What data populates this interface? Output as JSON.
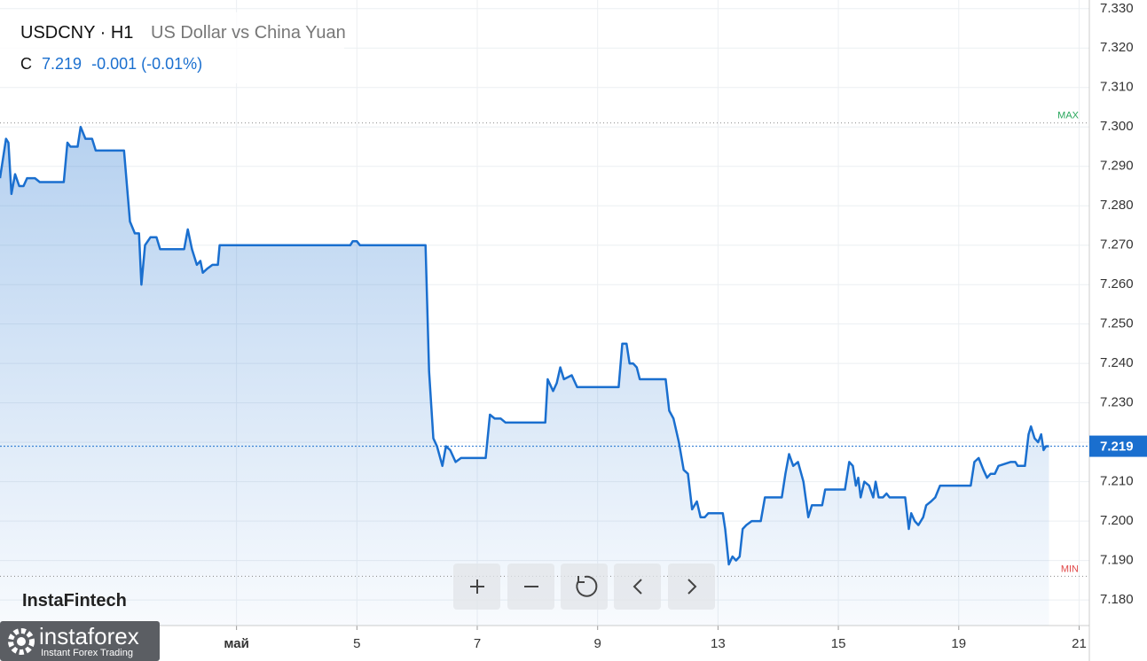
{
  "header": {
    "symbol": "USDCNY · H1",
    "description": "US Dollar vs China Yuan",
    "close_label": "C",
    "close": "7.219",
    "change": "-0.001 (-0.01%)"
  },
  "branding": {
    "logo": "InstaFintech",
    "footer_logo": "instaforex",
    "footer_tagline": "Instant Forex Trading"
  },
  "chart_data": {
    "type": "line",
    "area": true,
    "color": "#1a6fcf",
    "x": [
      -3.93,
      -3.83,
      -3.79,
      -3.74,
      -3.68,
      -3.61,
      -3.54,
      -3.48,
      -3.35,
      -3.27,
      -2.87,
      -2.81,
      -2.76,
      -2.64,
      -2.59,
      -2.51,
      -2.4,
      -2.34,
      -1.87,
      -1.77,
      -1.69,
      -1.62,
      -1.58,
      -1.52,
      -1.43,
      -1.33,
      -1.27,
      -0.87,
      -0.81,
      -0.74,
      -0.66,
      -0.6,
      -0.56,
      -0.49,
      -0.4,
      -0.31,
      -0.28,
      1.89,
      1.93,
      2.0,
      2.05,
      3.14,
      3.2,
      3.27,
      3.33,
      3.42,
      3.48,
      3.55,
      3.64,
      3.73,
      4.14,
      4.21,
      4.29,
      4.39,
      4.47,
      5.13,
      5.17,
      5.26,
      5.32,
      5.38,
      5.44,
      5.57,
      5.66,
      6.35,
      6.41,
      6.48,
      6.53,
      6.59,
      6.65,
      6.7,
      7.13,
      7.19,
      7.26,
      7.35,
      7.43,
      7.5,
      7.57,
      7.65,
      7.71,
      7.78,
      7.84,
      8.08,
      8.12,
      8.18,
      8.24,
      8.3,
      8.36,
      8.41,
      8.47,
      8.56,
      8.71,
      8.78,
      8.89,
      9.06,
      9.12,
      9.18,
      9.25,
      9.33,
      9.42,
      9.5,
      9.56,
      9.73,
      9.78,
      10.11,
      10.18,
      10.24,
      10.29,
      10.33,
      10.37,
      10.43,
      10.51,
      10.58,
      10.62,
      10.67,
      10.74,
      10.8,
      10.85,
      11.11,
      11.17,
      11.21,
      11.27,
      11.33,
      11.41,
      11.46,
      11.54,
      11.61,
      11.69,
      12.2,
      12.26,
      12.33,
      12.41,
      12.47,
      12.53,
      12.6,
      12.66,
      12.86,
      12.94,
      12.98,
      13.1,
      13.16,
      13.2,
      13.26,
      13.32,
      13.37,
      13.41,
      13.45,
      13.5
    ],
    "values": [
      7.287,
      7.297,
      7.296,
      7.283,
      7.288,
      7.285,
      7.285,
      7.287,
      7.287,
      7.286,
      7.286,
      7.296,
      7.295,
      7.295,
      7.3,
      7.297,
      7.297,
      7.294,
      7.294,
      7.276,
      7.273,
      7.273,
      7.26,
      7.27,
      7.272,
      7.272,
      7.269,
      7.269,
      7.274,
      7.269,
      7.265,
      7.266,
      7.263,
      7.264,
      7.265,
      7.265,
      7.27,
      7.27,
      7.271,
      7.271,
      7.27,
      7.27,
      7.238,
      7.221,
      7.219,
      7.214,
      7.219,
      7.218,
      7.215,
      7.216,
      7.216,
      7.227,
      7.226,
      7.226,
      7.225,
      7.225,
      7.236,
      7.233,
      7.235,
      7.239,
      7.236,
      7.237,
      7.234,
      7.234,
      7.245,
      7.245,
      7.24,
      7.24,
      7.239,
      7.236,
      7.236,
      7.228,
      7.226,
      7.22,
      7.213,
      7.212,
      7.203,
      7.205,
      7.201,
      7.201,
      7.202,
      7.202,
      7.198,
      7.189,
      7.191,
      7.19,
      7.191,
      7.198,
      7.199,
      7.2,
      7.2,
      7.206,
      7.206,
      7.206,
      7.212,
      7.217,
      7.214,
      7.215,
      7.21,
      7.201,
      7.204,
      7.204,
      7.208,
      7.208,
      7.215,
      7.214,
      7.209,
      7.211,
      7.206,
      7.21,
      7.209,
      7.206,
      7.21,
      7.206,
      7.206,
      7.207,
      7.206,
      7.206,
      7.198,
      7.202,
      7.2,
      7.199,
      7.201,
      7.204,
      7.205,
      7.206,
      7.209,
      7.209,
      7.215,
      7.216,
      7.213,
      7.211,
      7.212,
      7.212,
      7.214,
      7.215,
      7.215,
      7.214,
      7.214,
      7.222,
      7.224,
      7.221,
      7.22,
      7.222,
      7.218,
      7.219,
      7.219
    ],
    "xlim": [
      -3.93,
      14.17
    ],
    "xticks": [
      {
        "value": 0,
        "label": "май"
      },
      {
        "value": 2,
        "label": "5"
      },
      {
        "value": 4,
        "label": "7"
      },
      {
        "value": 6,
        "label": "9"
      },
      {
        "value": 8,
        "label": "13"
      },
      {
        "value": 10,
        "label": "15"
      },
      {
        "value": 12,
        "label": "19"
      },
      {
        "value": 14,
        "label": "21"
      }
    ],
    "ylim": [
      7.1735,
      7.3322
    ],
    "yticks": [
      {
        "value": 7.18,
        "label": "7.180"
      },
      {
        "value": 7.19,
        "label": "7.190"
      },
      {
        "value": 7.2,
        "label": "7.200"
      },
      {
        "value": 7.21,
        "label": "7.210"
      },
      {
        "value": 7.22,
        "label": "7.220"
      },
      {
        "value": 7.23,
        "label": "7.230"
      },
      {
        "value": 7.24,
        "label": "7.240"
      },
      {
        "value": 7.25,
        "label": "7.250"
      },
      {
        "value": 7.26,
        "label": "7.260"
      },
      {
        "value": 7.27,
        "label": "7.270"
      },
      {
        "value": 7.28,
        "label": "7.280"
      },
      {
        "value": 7.29,
        "label": "7.290"
      },
      {
        "value": 7.3,
        "label": "7.300"
      },
      {
        "value": 7.31,
        "label": "7.310"
      },
      {
        "value": 7.32,
        "label": "7.320"
      },
      {
        "value": 7.33,
        "label": "7.330"
      }
    ],
    "grid": true,
    "max_line": {
      "label": "MAX",
      "value": 7.301,
      "color": "#26a65b"
    },
    "min_line": {
      "label": "MIN",
      "value": 7.186,
      "color": "#e04848"
    },
    "last_price": 7.219
  }
}
